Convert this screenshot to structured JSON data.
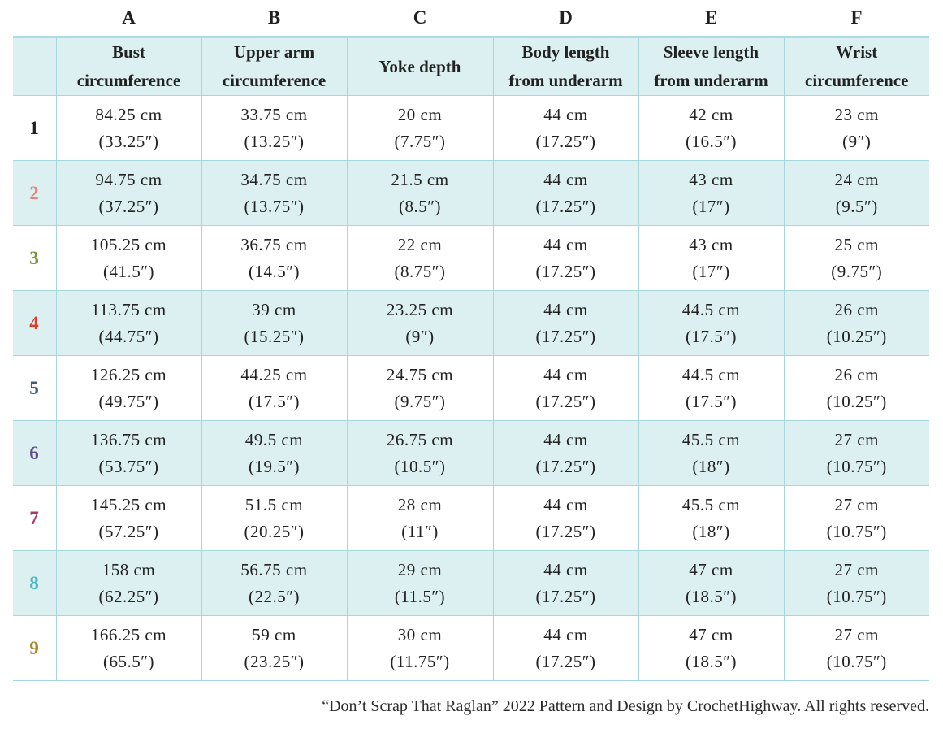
{
  "columns": {
    "letters": [
      "A",
      "B",
      "C",
      "D",
      "E",
      "F"
    ],
    "headers": [
      {
        "line1": "Bust",
        "line2": "circumference"
      },
      {
        "line1": "Upper arm",
        "line2": "circumference"
      },
      {
        "line1": "Yoke depth",
        "line2": ""
      },
      {
        "line1": "Body length",
        "line2": "from underarm"
      },
      {
        "line1": "Sleeve length",
        "line2": "from underarm"
      },
      {
        "line1": "Wrist",
        "line2": "circumference"
      }
    ]
  },
  "sizes": [
    {
      "label": "1",
      "color": "#1f1f1f",
      "cells": [
        {
          "cm": "84.25 cm",
          "in": "(33.25″)"
        },
        {
          "cm": "33.75 cm",
          "in": "(13.25″)"
        },
        {
          "cm": "20 cm",
          "in": "(7.75″)"
        },
        {
          "cm": "44 cm",
          "in": "(17.25″)"
        },
        {
          "cm": "42 cm",
          "in": "(16.5″)"
        },
        {
          "cm": "23 cm",
          "in": "(9″)"
        }
      ]
    },
    {
      "label": "2",
      "color": "#e8857a",
      "cells": [
        {
          "cm": "94.75 cm",
          "in": "(37.25″)"
        },
        {
          "cm": "34.75 cm",
          "in": "(13.75″)"
        },
        {
          "cm": "21.5 cm",
          "in": "(8.5″)"
        },
        {
          "cm": "44 cm",
          "in": "(17.25″)"
        },
        {
          "cm": "43 cm",
          "in": "(17″)"
        },
        {
          "cm": "24 cm",
          "in": "(9.5″)"
        }
      ]
    },
    {
      "label": "3",
      "color": "#6f9a3c",
      "cells": [
        {
          "cm": "105.25 cm",
          "in": "(41.5″)"
        },
        {
          "cm": "36.75 cm",
          "in": "(14.5″)"
        },
        {
          "cm": "22 cm",
          "in": "(8.75″)"
        },
        {
          "cm": "44 cm",
          "in": "(17.25″)"
        },
        {
          "cm": "43 cm",
          "in": "(17″)"
        },
        {
          "cm": "25 cm",
          "in": "(9.75″)"
        }
      ]
    },
    {
      "label": "4",
      "color": "#d9402b",
      "cells": [
        {
          "cm": "113.75 cm",
          "in": "(44.75″)"
        },
        {
          "cm": "39 cm",
          "in": "(15.25″)"
        },
        {
          "cm": "23.25 cm",
          "in": "(9″)"
        },
        {
          "cm": "44 cm",
          "in": "(17.25″)"
        },
        {
          "cm": "44.5 cm",
          "in": "(17.5″)"
        },
        {
          "cm": "26 cm",
          "in": "(10.25″)"
        }
      ]
    },
    {
      "label": "5",
      "color": "#3f5f78",
      "cells": [
        {
          "cm": "126.25 cm",
          "in": "(49.75″)"
        },
        {
          "cm": "44.25 cm",
          "in": "(17.5″)"
        },
        {
          "cm": "24.75 cm",
          "in": "(9.75″)"
        },
        {
          "cm": "44 cm",
          "in": "(17.25″)"
        },
        {
          "cm": "44.5 cm",
          "in": "(17.5″)"
        },
        {
          "cm": "26 cm",
          "in": "(10.25″)"
        }
      ]
    },
    {
      "label": "6",
      "color": "#5f4d86",
      "cells": [
        {
          "cm": "136.75 cm",
          "in": "(53.75″)"
        },
        {
          "cm": "49.5 cm",
          "in": "(19.5″)"
        },
        {
          "cm": "26.75 cm",
          "in": "(10.5″)"
        },
        {
          "cm": "44 cm",
          "in": "(17.25″)"
        },
        {
          "cm": "45.5 cm",
          "in": "(18″)"
        },
        {
          "cm": "27 cm",
          "in": "(10.75″)"
        }
      ]
    },
    {
      "label": "7",
      "color": "#a8376b",
      "cells": [
        {
          "cm": "145.25 cm",
          "in": "(57.25″)"
        },
        {
          "cm": "51.5 cm",
          "in": "(20.25″)"
        },
        {
          "cm": "28 cm",
          "in": "(11″)"
        },
        {
          "cm": "44 cm",
          "in": "(17.25″)"
        },
        {
          "cm": "45.5 cm",
          "in": "(18″)"
        },
        {
          "cm": "27 cm",
          "in": "(10.75″)"
        }
      ]
    },
    {
      "label": "8",
      "color": "#4fb7bf",
      "cells": [
        {
          "cm": "158 cm",
          "in": "(62.25″)"
        },
        {
          "cm": "56.75 cm",
          "in": "(22.5″)"
        },
        {
          "cm": "29 cm",
          "in": "(11.5″)"
        },
        {
          "cm": "44 cm",
          "in": "(17.25″)"
        },
        {
          "cm": "47 cm",
          "in": "(18.5″)"
        },
        {
          "cm": "27 cm",
          "in": "(10.75″)"
        }
      ]
    },
    {
      "label": "9",
      "color": "#a8862a",
      "cells": [
        {
          "cm": "166.25 cm",
          "in": "(65.5″)"
        },
        {
          "cm": "59 cm",
          "in": "(23.25″)"
        },
        {
          "cm": "30 cm",
          "in": "(11.75″)"
        },
        {
          "cm": "44 cm",
          "in": "(17.25″)"
        },
        {
          "cm": "47 cm",
          "in": "(18.5″)"
        },
        {
          "cm": "27 cm",
          "in": "(10.75″)"
        }
      ]
    }
  ],
  "footer": {
    "credit": "“Don’t Scrap That Raglan” 2022 Pattern and Design by CrochetHighway. All rights reserved."
  },
  "colors": {
    "header_bg": "#dcf0f2",
    "border": "#a5d8dc",
    "accent_rule": "#a9dde0"
  }
}
